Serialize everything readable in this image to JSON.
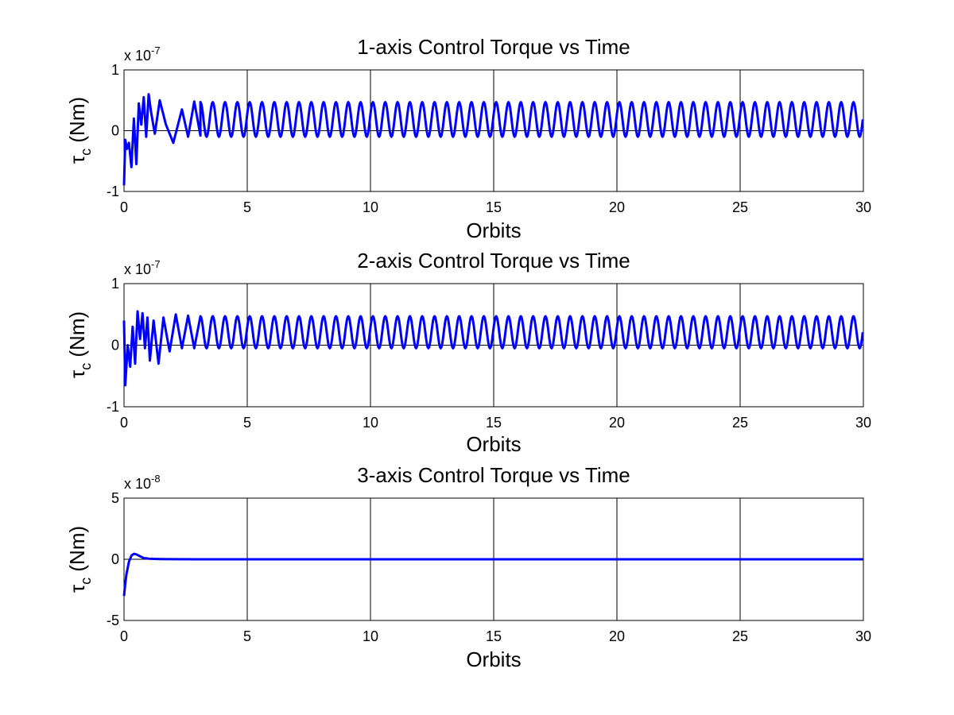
{
  "chart_data": [
    {
      "type": "line",
      "title": "1-axis Control Torque vs Time",
      "xlabel": "Orbits",
      "ylabel": "τ",
      "ylabel_subscript": "c",
      "ylabel_unit": " (Nm)",
      "multiplier_base": "x 10",
      "multiplier_exponent": "-7",
      "xlim": [
        0,
        30
      ],
      "ylim": [
        -1,
        1
      ],
      "xticks": [
        0,
        5,
        10,
        15,
        20,
        25,
        30
      ],
      "yticks": [
        -1,
        0,
        1
      ],
      "xtick_labels": [
        "0",
        "5",
        "10",
        "15",
        "20",
        "25",
        "30"
      ],
      "ytick_labels": [
        "-1",
        "0",
        "1"
      ],
      "grid": true,
      "series": [
        {
          "color": "#0000ff",
          "x": [
            0,
            0.05,
            0.12,
            0.2,
            0.3,
            0.4,
            0.5,
            0.6,
            0.7,
            0.8,
            0.9,
            1.0,
            1.1,
            1.25,
            1.45,
            1.7,
            2.0,
            2.35,
            2.6,
            2.85,
            3.1
          ],
          "y": [
            -0.9,
            -0.15,
            -0.3,
            -0.2,
            -0.6,
            0.2,
            -0.55,
            0.45,
            0.1,
            0.55,
            -0.1,
            0.6,
            0.3,
            -0.05,
            0.5,
            0.1,
            -0.2,
            0.35,
            -0.1,
            0.48,
            -0.08
          ],
          "oscillation": {
            "from": 3.1,
            "to": 30,
            "period": 0.5,
            "max": 0.47,
            "min": -0.1
          }
        }
      ]
    },
    {
      "type": "line",
      "title": "2-axis Control Torque vs Time",
      "xlabel": "Orbits",
      "ylabel": "τ",
      "ylabel_subscript": "c",
      "ylabel_unit": " (Nm)",
      "multiplier_base": "x 10",
      "multiplier_exponent": "-7",
      "xlim": [
        0,
        30
      ],
      "ylim": [
        -1,
        1
      ],
      "xticks": [
        0,
        5,
        10,
        15,
        20,
        25,
        30
      ],
      "yticks": [
        -1,
        0,
        1
      ],
      "xtick_labels": [
        "0",
        "5",
        "10",
        "15",
        "20",
        "25",
        "30"
      ],
      "ytick_labels": [
        "-1",
        "0",
        "1"
      ],
      "grid": true,
      "series": [
        {
          "color": "#0000ff",
          "x": [
            0,
            0.05,
            0.15,
            0.25,
            0.35,
            0.45,
            0.55,
            0.65,
            0.75,
            0.85,
            0.95,
            1.05,
            1.2,
            1.4,
            1.6,
            1.85,
            2.1,
            2.35,
            2.6,
            2.85,
            3.1
          ],
          "y": [
            0.4,
            -0.65,
            0.0,
            -0.35,
            0.3,
            -0.3,
            0.55,
            0.1,
            0.52,
            -0.05,
            0.45,
            -0.25,
            0.4,
            -0.3,
            0.45,
            -0.1,
            0.5,
            -0.05,
            0.48,
            -0.05,
            0.47
          ],
          "oscillation": {
            "from": 3.1,
            "to": 30,
            "period": 0.5,
            "max": 0.47,
            "min": -0.05
          }
        }
      ]
    },
    {
      "type": "line",
      "title": "3-axis Control Torque vs Time",
      "xlabel": "Orbits",
      "ylabel": "τ",
      "ylabel_subscript": "c",
      "ylabel_unit": " (Nm)",
      "multiplier_base": "x 10",
      "multiplier_exponent": "-8",
      "xlim": [
        0,
        30
      ],
      "ylim": [
        -5,
        5
      ],
      "xticks": [
        0,
        5,
        10,
        15,
        20,
        25,
        30
      ],
      "yticks": [
        -5,
        0,
        5
      ],
      "xtick_labels": [
        "0",
        "5",
        "10",
        "15",
        "20",
        "25",
        "30"
      ],
      "ytick_labels": [
        "-5",
        "0",
        "5"
      ],
      "grid": true,
      "series": [
        {
          "color": "#0000ff",
          "x": [
            0,
            0.05,
            0.1,
            0.2,
            0.3,
            0.4,
            0.5,
            0.6,
            0.7,
            0.8,
            0.9,
            1.0,
            1.2,
            1.5,
            2.0,
            3.0,
            5.0,
            8.0,
            12.7,
            15,
            20,
            25,
            30
          ],
          "y": [
            -3.0,
            -2.0,
            -1.2,
            -0.2,
            0.3,
            0.45,
            0.4,
            0.3,
            0.2,
            0.1,
            0.08,
            0.05,
            0.03,
            0.02,
            0.01,
            0.0,
            0.0,
            0.0,
            0.0,
            0.0,
            0.0,
            0.0,
            0.0
          ]
        }
      ]
    }
  ]
}
